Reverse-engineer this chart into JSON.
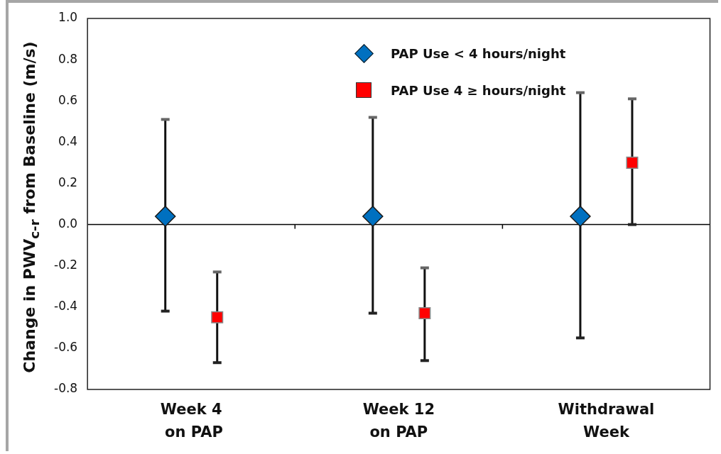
{
  "chart_data": {
    "type": "scatter",
    "ylabel": "Change in PWV$_{c-r}$ from Baseline  (m/s)",
    "categories": [
      "Week 4\n on PAP",
      "Week 12\non PAP",
      "Withdrawal\nWeek"
    ],
    "series": [
      {
        "name": "PAP Use < 4 hours/night",
        "color": "#0070c0",
        "marker": "diamond",
        "values": [
          0.04,
          0.04,
          0.04
        ],
        "errors": [
          [
            -0.42,
            0.51
          ],
          [
            -0.43,
            0.52
          ],
          [
            -0.55,
            0.64
          ]
        ]
      },
      {
        "name": "PAP Use 4 ≥ hours/night",
        "color": "#ff0000",
        "marker": "square",
        "values": [
          -0.45,
          -0.43,
          0.3
        ],
        "errors": [
          [
            -0.67,
            -0.23
          ],
          [
            -0.66,
            -0.21
          ],
          [
            0.0,
            0.61
          ]
        ]
      }
    ],
    "ylim": [
      -0.8,
      1.0
    ],
    "yticks": [
      {
        "value": -0.8,
        "label": "-0.8"
      },
      {
        "value": -0.6,
        "label": "-0.6"
      },
      {
        "value": -0.4,
        "label": "-0.4"
      },
      {
        "value": -0.2,
        "label": "-0.2"
      },
      {
        "value": 0,
        "label": "0.0"
      },
      {
        "value": 0.2,
        "label": "0.2"
      },
      {
        "value": 0.4,
        "label": "0.4"
      },
      {
        "value": 0.6,
        "label": "0.6"
      },
      {
        "value": 0.8,
        "label": "0.8"
      },
      {
        "value": 1.0,
        "label": "1.0"
      }
    ],
    "ref_lines": [
      {
        "axis": "y",
        "value": 0
      }
    ],
    "grid": false,
    "legend": "top"
  }
}
